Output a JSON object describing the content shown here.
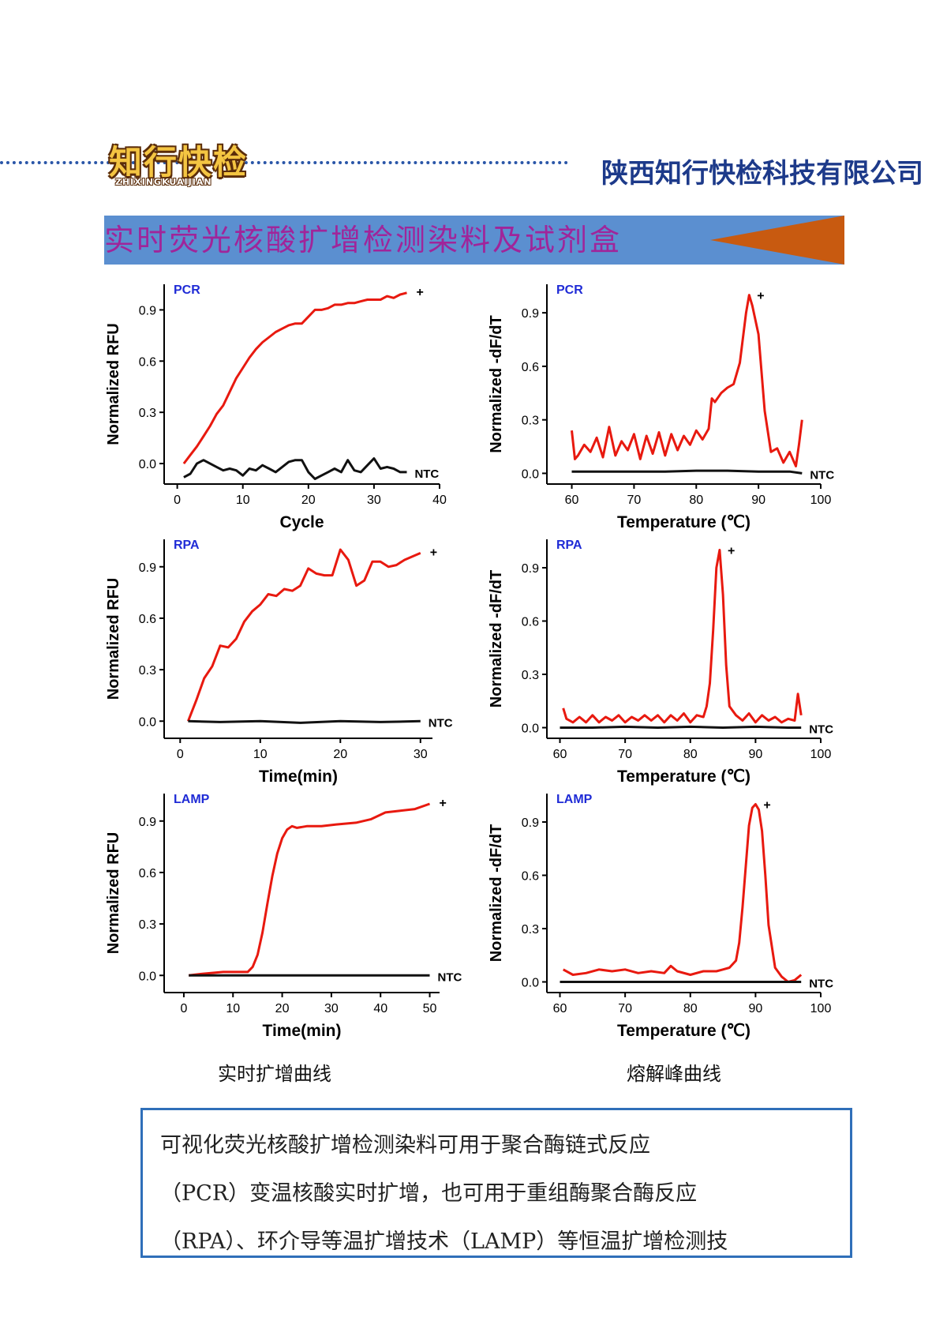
{
  "header": {
    "logo_text": "知行快检",
    "logo_subtext": "ZHIXINGKUAIJIAN",
    "company_name": "陕西知行快检科技有限公司"
  },
  "banner": {
    "title": "实时荧光核酸扩增检测染料及试剂盒",
    "color": "#5b8fd0",
    "arrow_color": "#c85a10"
  },
  "captions": {
    "left": "实时扩增曲线",
    "right": "熔解峰曲线"
  },
  "description": {
    "lines": [
      "可视化荧光核酸扩增检测染料可用于聚合酶链式反应",
      "（PCR）变温核酸实时扩增，也可用于重组酶聚合酶反应",
      "（RPA）、环介导等温扩增技术（LAMP）等恒温扩增检测技"
    ]
  },
  "chart_data": [
    {
      "type": "line",
      "tag": "PCR",
      "xlabel": "Cycle",
      "ylabel": "Normalized RFU",
      "xlim": [
        -2,
        40
      ],
      "ylim": [
        -0.12,
        1.05
      ],
      "xticks": [
        0,
        10,
        20,
        30,
        40
      ],
      "yticks": [
        0.0,
        0.3,
        0.6,
        0.9
      ],
      "series": [
        {
          "name": "+",
          "color": "#e8190f",
          "x": [
            1,
            2,
            3,
            4,
            5,
            6,
            7,
            8,
            9,
            10,
            11,
            12,
            13,
            14,
            15,
            16,
            17,
            18,
            19,
            20,
            21,
            22,
            23,
            24,
            25,
            26,
            27,
            28,
            29,
            30,
            31,
            32,
            33,
            34,
            35
          ],
          "y": [
            0.0,
            0.05,
            0.1,
            0.16,
            0.22,
            0.29,
            0.34,
            0.42,
            0.5,
            0.56,
            0.62,
            0.67,
            0.71,
            0.74,
            0.77,
            0.79,
            0.81,
            0.82,
            0.82,
            0.86,
            0.9,
            0.9,
            0.91,
            0.93,
            0.93,
            0.94,
            0.94,
            0.95,
            0.96,
            0.96,
            0.96,
            0.98,
            0.97,
            0.99,
            1.0
          ]
        },
        {
          "name": "NTC",
          "color": "#111111",
          "x": [
            1,
            2,
            3,
            4,
            5,
            6,
            7,
            8,
            9,
            10,
            11,
            12,
            13,
            14,
            15,
            16,
            17,
            18,
            19,
            20,
            21,
            22,
            23,
            24,
            25,
            26,
            27,
            28,
            29,
            30,
            31,
            32,
            33,
            34,
            35
          ],
          "y": [
            -0.08,
            -0.06,
            0.0,
            0.02,
            0.0,
            -0.02,
            -0.04,
            -0.03,
            -0.04,
            -0.07,
            -0.03,
            -0.04,
            -0.01,
            -0.03,
            -0.05,
            -0.02,
            0.01,
            0.02,
            0.02,
            -0.05,
            -0.09,
            -0.07,
            -0.05,
            -0.03,
            -0.05,
            0.02,
            -0.04,
            -0.05,
            -0.01,
            0.03,
            -0.03,
            -0.02,
            -0.03,
            -0.05,
            -0.05
          ]
        }
      ],
      "labels": {
        "plus": "+",
        "ntc": "NTC"
      }
    },
    {
      "type": "line",
      "tag": "PCR",
      "xlabel": "Temperature (℃)",
      "ylabel": "Normalized -dF/dT",
      "xlim": [
        56,
        100
      ],
      "ylim": [
        -0.06,
        1.06
      ],
      "xticks": [
        60,
        70,
        80,
        90,
        100
      ],
      "yticks": [
        0.0,
        0.3,
        0.6,
        0.9
      ],
      "series": [
        {
          "name": "+",
          "color": "#e8190f",
          "x": [
            60,
            60.5,
            61,
            62,
            63,
            64,
            65,
            66,
            67,
            68,
            69,
            70,
            71,
            72,
            73,
            74,
            75,
            76,
            77,
            78,
            79,
            80,
            81,
            82,
            82.5,
            83,
            84,
            85,
            86,
            87,
            88,
            88.5,
            89,
            90,
            91,
            92,
            93,
            94,
            95,
            96,
            96.5,
            97
          ],
          "y": [
            0.24,
            0.08,
            0.1,
            0.16,
            0.12,
            0.2,
            0.09,
            0.26,
            0.1,
            0.18,
            0.13,
            0.22,
            0.08,
            0.21,
            0.11,
            0.23,
            0.1,
            0.22,
            0.13,
            0.21,
            0.16,
            0.24,
            0.19,
            0.25,
            0.42,
            0.4,
            0.45,
            0.48,
            0.5,
            0.62,
            0.9,
            1.0,
            0.94,
            0.78,
            0.35,
            0.12,
            0.14,
            0.06,
            0.12,
            0.04,
            0.16,
            0.3
          ]
        },
        {
          "name": "NTC",
          "color": "#111111",
          "x": [
            60,
            65,
            70,
            75,
            80,
            85,
            90,
            95,
            97
          ],
          "y": [
            0.01,
            0.01,
            0.01,
            0.01,
            0.015,
            0.015,
            0.01,
            0.01,
            0.0
          ]
        }
      ],
      "labels": {
        "plus": "+",
        "ntc": "NTC"
      }
    },
    {
      "type": "line",
      "tag": "RPA",
      "xlabel": "Time(min)",
      "ylabel": "Normalized RFU",
      "xlim": [
        -2,
        31.5
      ],
      "ylim": [
        -0.1,
        1.06
      ],
      "xticks": [
        0,
        10,
        20,
        30
      ],
      "yticks": [
        0.0,
        0.3,
        0.6,
        0.9
      ],
      "series": [
        {
          "name": "+",
          "color": "#e8190f",
          "x": [
            1,
            2,
            3,
            4,
            5,
            6,
            7,
            8,
            9,
            10,
            11,
            12,
            13,
            14,
            15,
            16,
            17,
            18,
            19,
            20,
            21,
            22,
            23,
            24,
            25,
            26,
            27,
            28,
            29,
            30
          ],
          "y": [
            0.0,
            0.12,
            0.25,
            0.32,
            0.44,
            0.43,
            0.48,
            0.58,
            0.64,
            0.68,
            0.74,
            0.73,
            0.77,
            0.76,
            0.79,
            0.89,
            0.86,
            0.85,
            0.85,
            1.0,
            0.94,
            0.79,
            0.82,
            0.93,
            0.93,
            0.9,
            0.91,
            0.94,
            0.96,
            0.98
          ]
        },
        {
          "name": "NTC",
          "color": "#111111",
          "x": [
            1,
            5,
            10,
            15,
            20,
            25,
            30
          ],
          "y": [
            0.0,
            -0.005,
            0.0,
            -0.01,
            0.0,
            -0.005,
            0.0
          ]
        }
      ],
      "labels": {
        "plus": "+",
        "ntc": "NTC"
      }
    },
    {
      "type": "line",
      "tag": "RPA",
      "xlabel": "Temperature (℃)",
      "ylabel": "Normalized -dF/dT",
      "xlim": [
        58,
        100
      ],
      "ylim": [
        -0.06,
        1.06
      ],
      "xticks": [
        60,
        70,
        80,
        90,
        100
      ],
      "yticks": [
        0.0,
        0.3,
        0.6,
        0.9
      ],
      "series": [
        {
          "name": "+",
          "color": "#e8190f",
          "x": [
            60.5,
            61,
            62,
            63,
            64,
            65,
            66,
            67,
            68,
            69,
            70,
            71,
            72,
            73,
            74,
            75,
            76,
            77,
            78,
            79,
            80,
            81,
            82,
            82.5,
            83,
            83.5,
            84,
            84.5,
            85,
            85.5,
            86,
            87,
            88,
            89,
            90,
            91,
            92,
            93,
            94,
            95,
            96,
            96.5,
            97
          ],
          "y": [
            0.11,
            0.05,
            0.03,
            0.06,
            0.03,
            0.07,
            0.03,
            0.06,
            0.04,
            0.07,
            0.03,
            0.06,
            0.04,
            0.07,
            0.04,
            0.07,
            0.03,
            0.07,
            0.04,
            0.08,
            0.03,
            0.07,
            0.06,
            0.12,
            0.25,
            0.55,
            0.9,
            1.0,
            0.75,
            0.35,
            0.12,
            0.07,
            0.04,
            0.08,
            0.03,
            0.07,
            0.04,
            0.06,
            0.03,
            0.05,
            0.04,
            0.19,
            0.07
          ]
        },
        {
          "name": "NTC",
          "color": "#111111",
          "x": [
            60,
            65,
            70,
            75,
            80,
            85,
            90,
            95,
            97
          ],
          "y": [
            0.0,
            0.0,
            0.005,
            0.0,
            0.005,
            0.0,
            0.005,
            0.0,
            0.0
          ]
        }
      ],
      "labels": {
        "plus": "+",
        "ntc": "NTC"
      }
    },
    {
      "type": "line",
      "tag": "LAMP",
      "xlabel": "Time(min)",
      "ylabel": "Normalized RFU",
      "xlim": [
        -4,
        52
      ],
      "ylim": [
        -0.1,
        1.06
      ],
      "xticks": [
        0,
        10,
        20,
        30,
        40,
        50
      ],
      "yticks": [
        0.0,
        0.3,
        0.6,
        0.9
      ],
      "series": [
        {
          "name": "+",
          "color": "#e8190f",
          "x": [
            1,
            4,
            8,
            11,
            13,
            14,
            15,
            16,
            17,
            18,
            19,
            20,
            21,
            22,
            23,
            25,
            28,
            31,
            35,
            38,
            41,
            44,
            47,
            50
          ],
          "y": [
            0.0,
            0.01,
            0.02,
            0.02,
            0.02,
            0.05,
            0.12,
            0.25,
            0.42,
            0.58,
            0.71,
            0.8,
            0.85,
            0.87,
            0.86,
            0.87,
            0.87,
            0.88,
            0.89,
            0.91,
            0.95,
            0.96,
            0.97,
            1.0
          ]
        },
        {
          "name": "NTC",
          "color": "#111111",
          "x": [
            1,
            10,
            20,
            30,
            40,
            50
          ],
          "y": [
            0.0,
            0.0,
            0.0,
            0.0,
            0.0,
            0.0
          ]
        }
      ],
      "labels": {
        "plus": "+",
        "ntc": "NTC"
      }
    },
    {
      "type": "line",
      "tag": "LAMP",
      "xlabel": "Temperature (℃)",
      "ylabel": "Normalized -dF/dT",
      "xlim": [
        58,
        100
      ],
      "ylim": [
        -0.06,
        1.06
      ],
      "xticks": [
        60,
        70,
        80,
        90,
        100
      ],
      "yticks": [
        0.0,
        0.3,
        0.6,
        0.9
      ],
      "series": [
        {
          "name": "+",
          "color": "#e8190f",
          "x": [
            60.5,
            62,
            64,
            66,
            68,
            70,
            72,
            74,
            76,
            77,
            78,
            80,
            82,
            84,
            85,
            86,
            87,
            87.5,
            88,
            88.5,
            89,
            89.5,
            90,
            90.5,
            91,
            91.5,
            92,
            93,
            94,
            95,
            96,
            97
          ],
          "y": [
            0.07,
            0.04,
            0.05,
            0.07,
            0.06,
            0.07,
            0.05,
            0.06,
            0.05,
            0.09,
            0.06,
            0.04,
            0.06,
            0.06,
            0.07,
            0.08,
            0.12,
            0.22,
            0.42,
            0.65,
            0.88,
            0.98,
            1.0,
            0.97,
            0.85,
            0.6,
            0.32,
            0.08,
            0.03,
            0.0,
            0.01,
            0.04
          ]
        },
        {
          "name": "NTC",
          "color": "#111111",
          "x": [
            60,
            65,
            70,
            75,
            80,
            85,
            90,
            95,
            97
          ],
          "y": [
            0.0,
            0.0,
            0.0,
            0.0,
            0.0,
            0.0,
            0.0,
            0.0,
            0.0
          ]
        }
      ],
      "labels": {
        "plus": "+",
        "ntc": "NTC"
      }
    }
  ]
}
